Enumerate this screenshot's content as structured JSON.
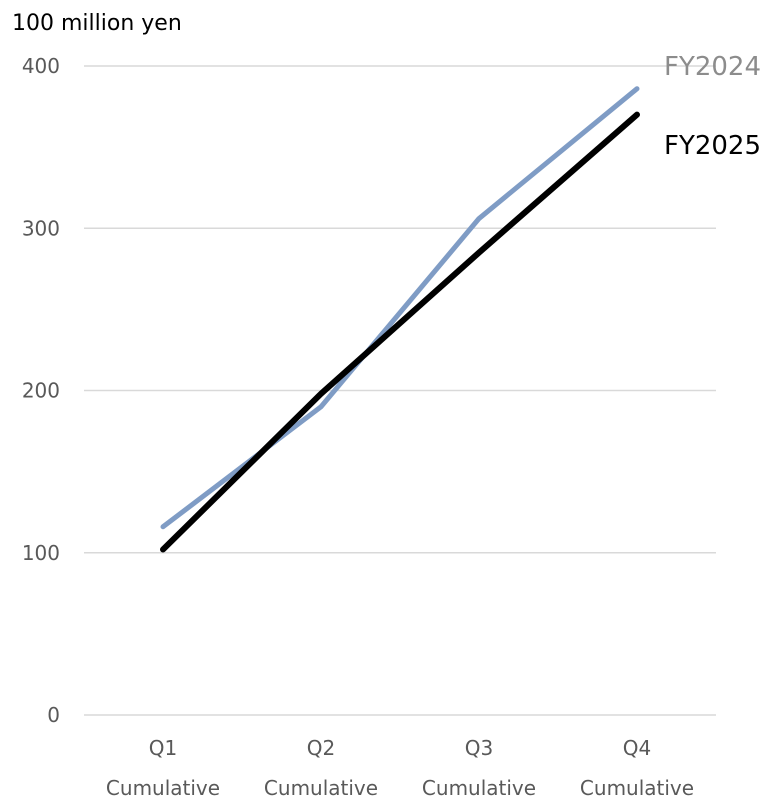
{
  "chart_data": {
    "type": "line",
    "unit_label": "100 million yen",
    "categories": [
      [
        "Q1",
        "Cumulative"
      ],
      [
        "Q2",
        "Cumulative"
      ],
      [
        "Q3",
        "Cumulative"
      ],
      [
        "Q4",
        "Cumulative"
      ]
    ],
    "ylim": [
      0,
      400
    ],
    "yticks": [
      0,
      100,
      200,
      300,
      400
    ],
    "grid": true,
    "legend": "inline labels at line ends",
    "series": [
      {
        "name": "FY2024",
        "color": "#7f9cc5",
        "label_color": "#8c8c8c",
        "values": [
          116,
          190,
          306,
          386
        ]
      },
      {
        "name": "FY2025",
        "color": "#000000",
        "label_color": "#000000",
        "values": [
          102,
          198,
          285,
          370
        ]
      }
    ]
  }
}
